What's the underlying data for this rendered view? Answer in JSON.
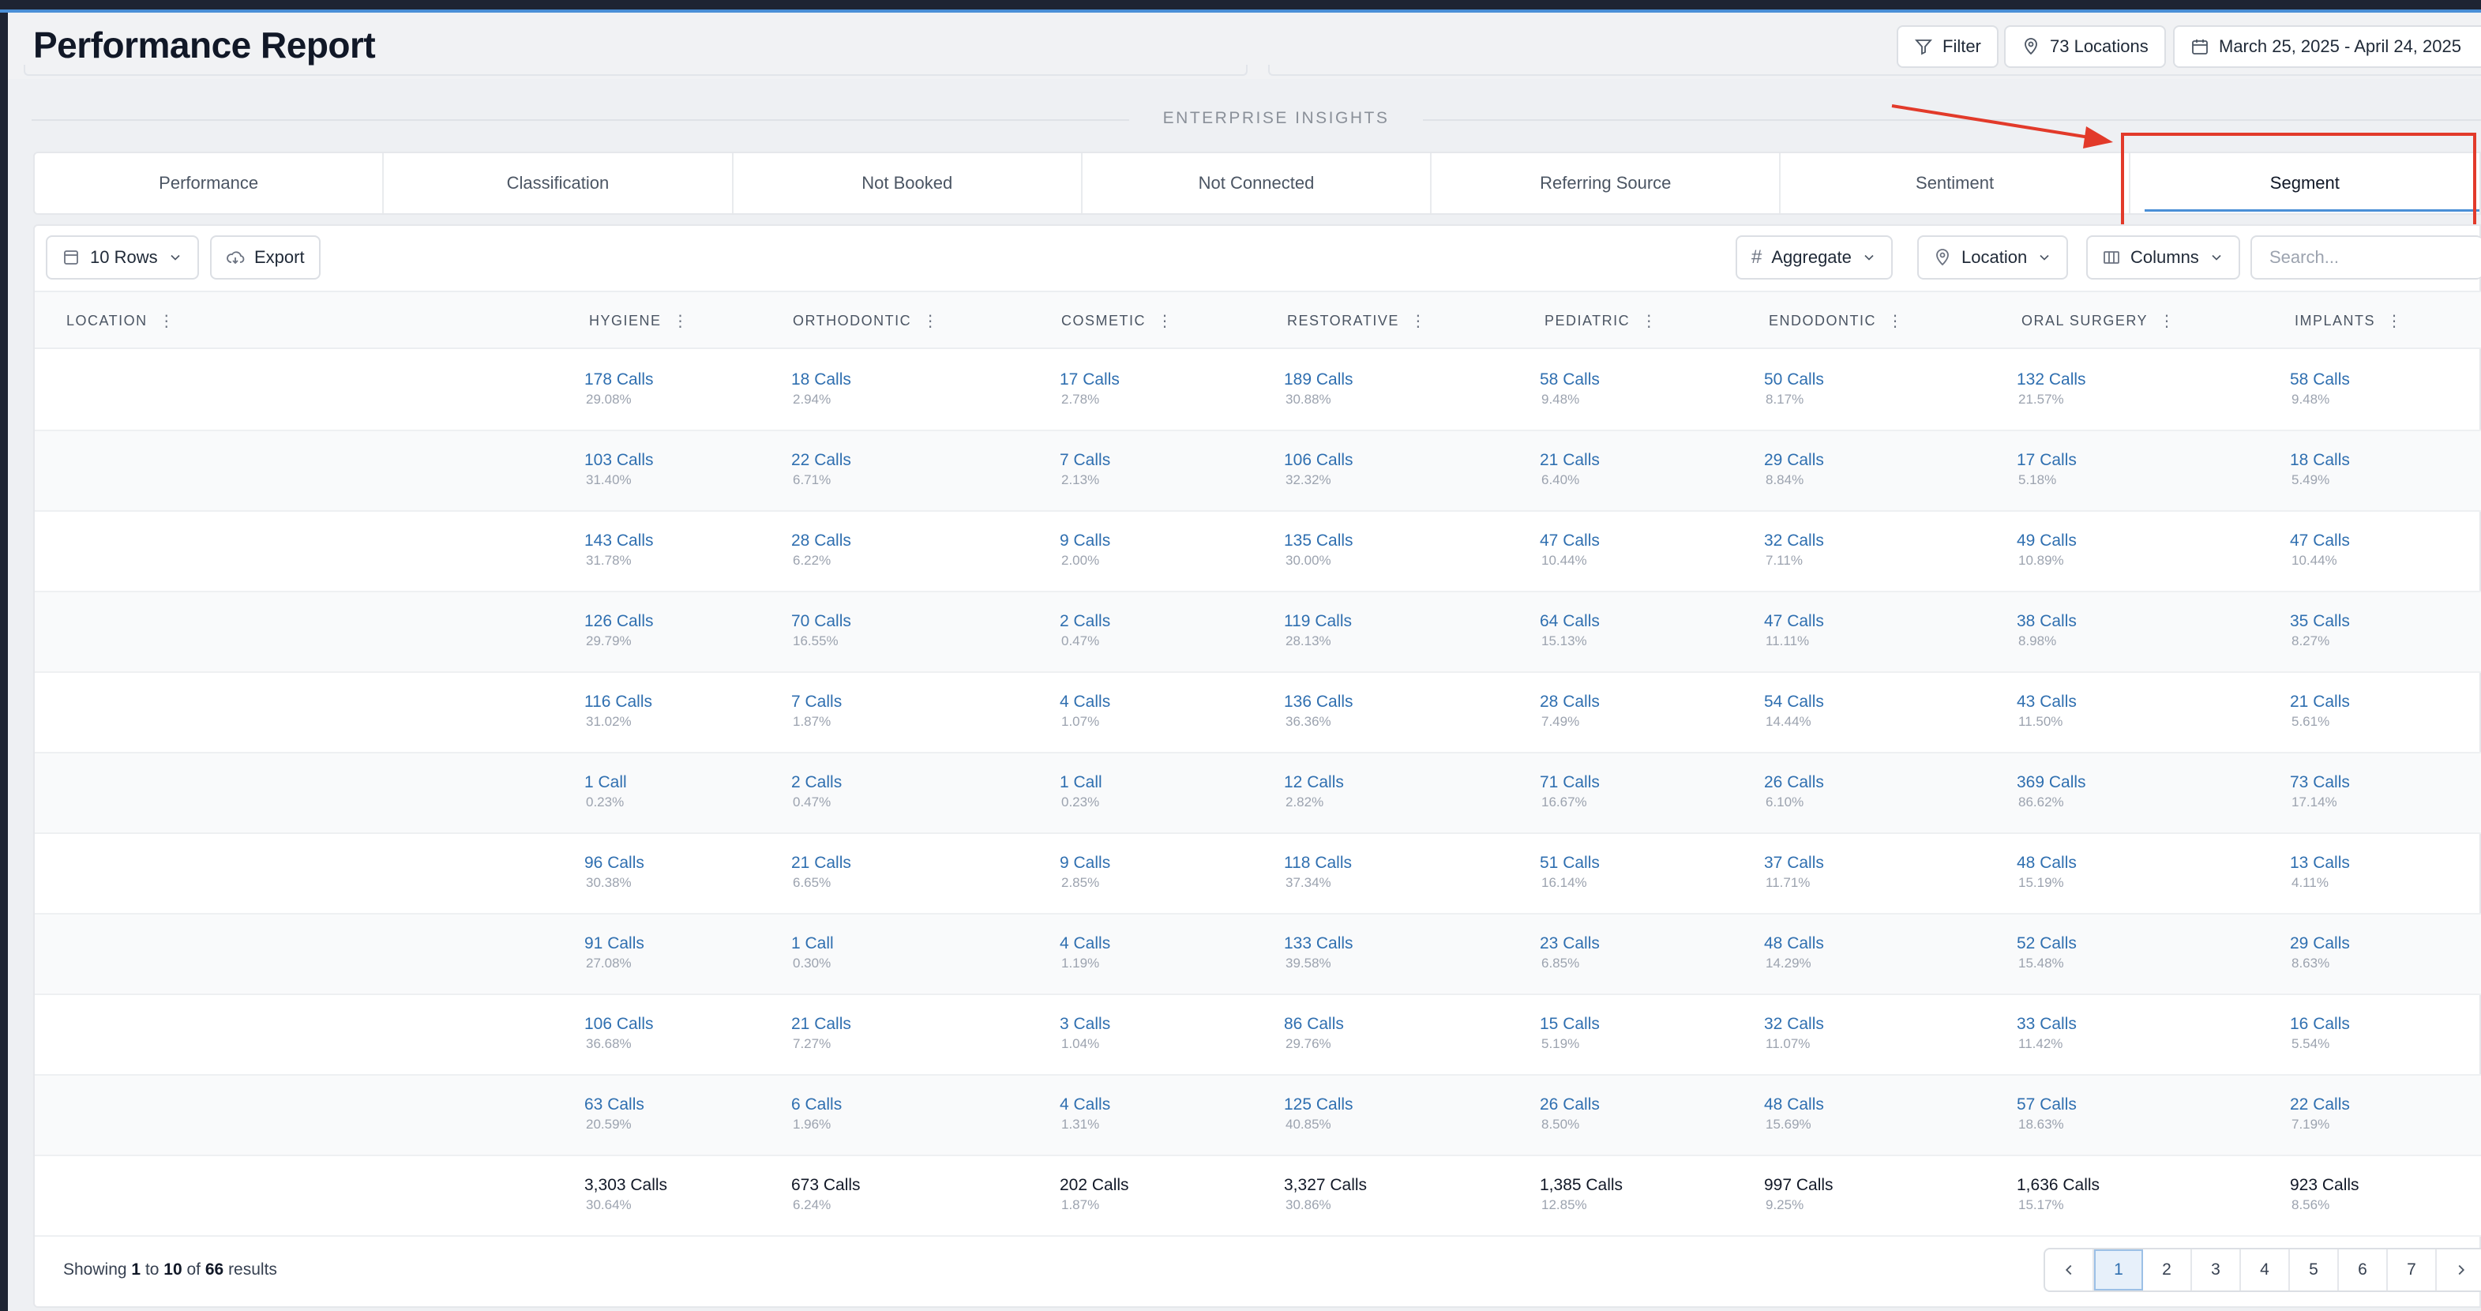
{
  "header": {
    "title": "Performance Report",
    "filter_label": "Filter",
    "locations_label": "73 Locations",
    "date_range": "March 25, 2025 - April 24, 2025"
  },
  "insights_label": "ENTERPRISE INSIGHTS",
  "tabs": [
    {
      "label": "Performance"
    },
    {
      "label": "Classification"
    },
    {
      "label": "Not Booked"
    },
    {
      "label": "Not Connected"
    },
    {
      "label": "Referring Source"
    },
    {
      "label": "Sentiment"
    },
    {
      "label": "Segment",
      "active": true
    }
  ],
  "toolbar": {
    "rows_label": "10 Rows",
    "export_label": "Export",
    "aggregate_label": "Aggregate",
    "location_label": "Location",
    "columns_label": "Columns",
    "search_placeholder": "Search..."
  },
  "table": {
    "columns": [
      "LOCATION",
      "HYGIENE",
      "ORTHODONTIC",
      "COSMETIC",
      "RESTORATIVE",
      "PEDIATRIC",
      "ENDODONTIC",
      "ORAL SURGERY",
      "IMPLANTS"
    ],
    "rows": [
      [
        [
          "178 Calls",
          "29.08%"
        ],
        [
          "18 Calls",
          "2.94%"
        ],
        [
          "17 Calls",
          "2.78%"
        ],
        [
          "189 Calls",
          "30.88%"
        ],
        [
          "58 Calls",
          "9.48%"
        ],
        [
          "50 Calls",
          "8.17%"
        ],
        [
          "132 Calls",
          "21.57%"
        ],
        [
          "58 Calls",
          "9.48%"
        ]
      ],
      [
        [
          "103 Calls",
          "31.40%"
        ],
        [
          "22 Calls",
          "6.71%"
        ],
        [
          "7 Calls",
          "2.13%"
        ],
        [
          "106 Calls",
          "32.32%"
        ],
        [
          "21 Calls",
          "6.40%"
        ],
        [
          "29 Calls",
          "8.84%"
        ],
        [
          "17 Calls",
          "5.18%"
        ],
        [
          "18 Calls",
          "5.49%"
        ]
      ],
      [
        [
          "143 Calls",
          "31.78%"
        ],
        [
          "28 Calls",
          "6.22%"
        ],
        [
          "9 Calls",
          "2.00%"
        ],
        [
          "135 Calls",
          "30.00%"
        ],
        [
          "47 Calls",
          "10.44%"
        ],
        [
          "32 Calls",
          "7.11%"
        ],
        [
          "49 Calls",
          "10.89%"
        ],
        [
          "47 Calls",
          "10.44%"
        ]
      ],
      [
        [
          "126 Calls",
          "29.79%"
        ],
        [
          "70 Calls",
          "16.55%"
        ],
        [
          "2 Calls",
          "0.47%"
        ],
        [
          "119 Calls",
          "28.13%"
        ],
        [
          "64 Calls",
          "15.13%"
        ],
        [
          "47 Calls",
          "11.11%"
        ],
        [
          "38 Calls",
          "8.98%"
        ],
        [
          "35 Calls",
          "8.27%"
        ]
      ],
      [
        [
          "116 Calls",
          "31.02%"
        ],
        [
          "7 Calls",
          "1.87%"
        ],
        [
          "4 Calls",
          "1.07%"
        ],
        [
          "136 Calls",
          "36.36%"
        ],
        [
          "28 Calls",
          "7.49%"
        ],
        [
          "54 Calls",
          "14.44%"
        ],
        [
          "43 Calls",
          "11.50%"
        ],
        [
          "21 Calls",
          "5.61%"
        ]
      ],
      [
        [
          "1 Call",
          "0.23%"
        ],
        [
          "2 Calls",
          "0.47%"
        ],
        [
          "1 Call",
          "0.23%"
        ],
        [
          "12 Calls",
          "2.82%"
        ],
        [
          "71 Calls",
          "16.67%"
        ],
        [
          "26 Calls",
          "6.10%"
        ],
        [
          "369 Calls",
          "86.62%"
        ],
        [
          "73 Calls",
          "17.14%"
        ]
      ],
      [
        [
          "96 Calls",
          "30.38%"
        ],
        [
          "21 Calls",
          "6.65%"
        ],
        [
          "9 Calls",
          "2.85%"
        ],
        [
          "118 Calls",
          "37.34%"
        ],
        [
          "51 Calls",
          "16.14%"
        ],
        [
          "37 Calls",
          "11.71%"
        ],
        [
          "48 Calls",
          "15.19%"
        ],
        [
          "13 Calls",
          "4.11%"
        ]
      ],
      [
        [
          "91 Calls",
          "27.08%"
        ],
        [
          "1 Call",
          "0.30%"
        ],
        [
          "4 Calls",
          "1.19%"
        ],
        [
          "133 Calls",
          "39.58%"
        ],
        [
          "23 Calls",
          "6.85%"
        ],
        [
          "48 Calls",
          "14.29%"
        ],
        [
          "52 Calls",
          "15.48%"
        ],
        [
          "29 Calls",
          "8.63%"
        ]
      ],
      [
        [
          "106 Calls",
          "36.68%"
        ],
        [
          "21 Calls",
          "7.27%"
        ],
        [
          "3 Calls",
          "1.04%"
        ],
        [
          "86 Calls",
          "29.76%"
        ],
        [
          "15 Calls",
          "5.19%"
        ],
        [
          "32 Calls",
          "11.07%"
        ],
        [
          "33 Calls",
          "11.42%"
        ],
        [
          "16 Calls",
          "5.54%"
        ]
      ],
      [
        [
          "63 Calls",
          "20.59%"
        ],
        [
          "6 Calls",
          "1.96%"
        ],
        [
          "4 Calls",
          "1.31%"
        ],
        [
          "125 Calls",
          "40.85%"
        ],
        [
          "26 Calls",
          "8.50%"
        ],
        [
          "48 Calls",
          "15.69%"
        ],
        [
          "57 Calls",
          "18.63%"
        ],
        [
          "22 Calls",
          "7.19%"
        ]
      ]
    ],
    "totals": [
      [
        "3,303 Calls",
        "30.64%"
      ],
      [
        "673 Calls",
        "6.24%"
      ],
      [
        "202 Calls",
        "1.87%"
      ],
      [
        "3,327 Calls",
        "30.86%"
      ],
      [
        "1,385 Calls",
        "12.85%"
      ],
      [
        "997 Calls",
        "9.25%"
      ],
      [
        "1,636 Calls",
        "15.17%"
      ],
      [
        "923 Calls",
        "8.56%"
      ]
    ]
  },
  "footer": {
    "showing_prefix": "Showing",
    "from": "1",
    "to_word": "to",
    "to": "10",
    "of_word": "of",
    "total": "66",
    "results_word": "results",
    "pages": [
      "1",
      "2",
      "3",
      "4",
      "5",
      "6",
      "7"
    ],
    "current_page": "1"
  },
  "colors": {
    "accent": "#4a8fd6",
    "link": "#2f6fb0",
    "highlight": "#e23a2a"
  }
}
